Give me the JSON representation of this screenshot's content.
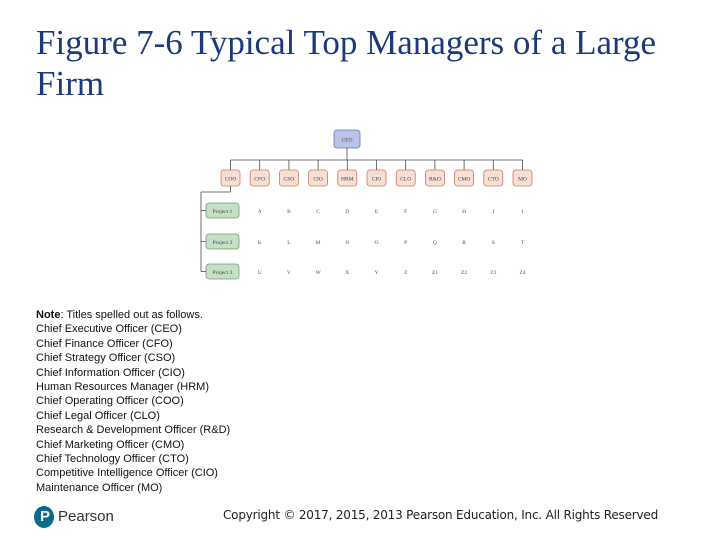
{
  "title": "Figure 7-6 Typical Top Managers of a Large Firm",
  "org_chart": {
    "top": "CEO",
    "managers": [
      "COO",
      "CFO",
      "CSO",
      "CIO",
      "HRM",
      "CIO",
      "CLO",
      "R&D",
      "CMO",
      "CTO",
      "MO"
    ],
    "projects": [
      {
        "label": "Project 1",
        "cells": [
          "A",
          "B",
          "C",
          "D",
          "E",
          "F",
          "G",
          "H",
          "I",
          "J"
        ]
      },
      {
        "label": "Project 2",
        "cells": [
          "K",
          "L",
          "M",
          "N",
          "O",
          "P",
          "Q",
          "R",
          "S",
          "T"
        ]
      },
      {
        "label": "Project 3",
        "cells": [
          "U",
          "V",
          "W",
          "X",
          "Y",
          "Z",
          "Z1",
          "Z2",
          "Z3",
          "Z4"
        ]
      }
    ],
    "colors": {
      "ceo_fill": "#b9c3e8",
      "manager_fill": "#f6dfd4",
      "project_fill": "#c7dfc7"
    }
  },
  "note": {
    "heading": "Note",
    "intro": ": Titles spelled out as follows.",
    "lines": [
      "Chief Executive Officer (CEO)",
      "Chief Finance Officer (CFO)",
      "Chief Strategy Officer (CSO)",
      "Chief Information Officer (CIO)",
      "Human Resources Manager (HRM)",
      "Chief Operating Officer (COO)",
      "Chief Legal Officer (CLO)",
      "Research & Development Officer (R&D)",
      "Chief Marketing Officer (CMO)",
      "Chief Technology Officer (CTO)",
      "Competitive Intelligence Officer (CIO)",
      "Maintenance Officer (MO)"
    ]
  },
  "footer": {
    "copyright": "Copyright © 2017, 2015, 2013 Pearson Education, Inc. All Rights Reserved",
    "logo_text": "Pearson",
    "logo_mark": "P"
  }
}
